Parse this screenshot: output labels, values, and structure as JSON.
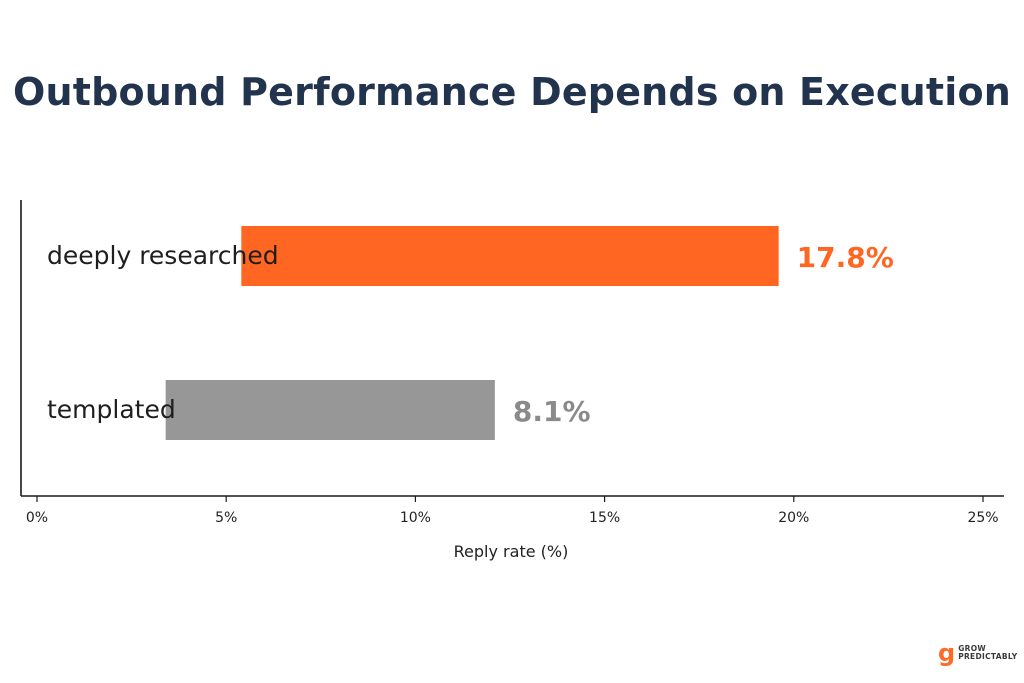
{
  "chart_data": {
    "type": "bar",
    "orientation": "horizontal",
    "title": "Outbound Performance Depends on Execution",
    "categories": [
      "deeply researched",
      "templated"
    ],
    "bars": [
      {
        "category": "deeply researched",
        "start": 5.4,
        "end": 19.6,
        "label": "17.8%",
        "color": "#ff6622",
        "label_color": "#ff6622"
      },
      {
        "category": "templated",
        "start": 3.4,
        "end": 12.1,
        "label": "8.1%",
        "color": "#979797",
        "label_color": "#8a8a8a"
      }
    ],
    "xlabel": "Reply rate (%)",
    "ylabel": "",
    "xlim": [
      0,
      25
    ],
    "xticks": [
      0,
      5,
      10,
      15,
      20,
      25
    ],
    "xtick_labels": [
      "0%",
      "5%",
      "10%",
      "15%",
      "20%",
      "25%"
    ],
    "grid": false,
    "legend": "none"
  },
  "branding": {
    "logo_mark": "g",
    "logo_line1": "GROW",
    "logo_line2": "PREDICTABLY",
    "logo_color": "#ff6a28"
  }
}
